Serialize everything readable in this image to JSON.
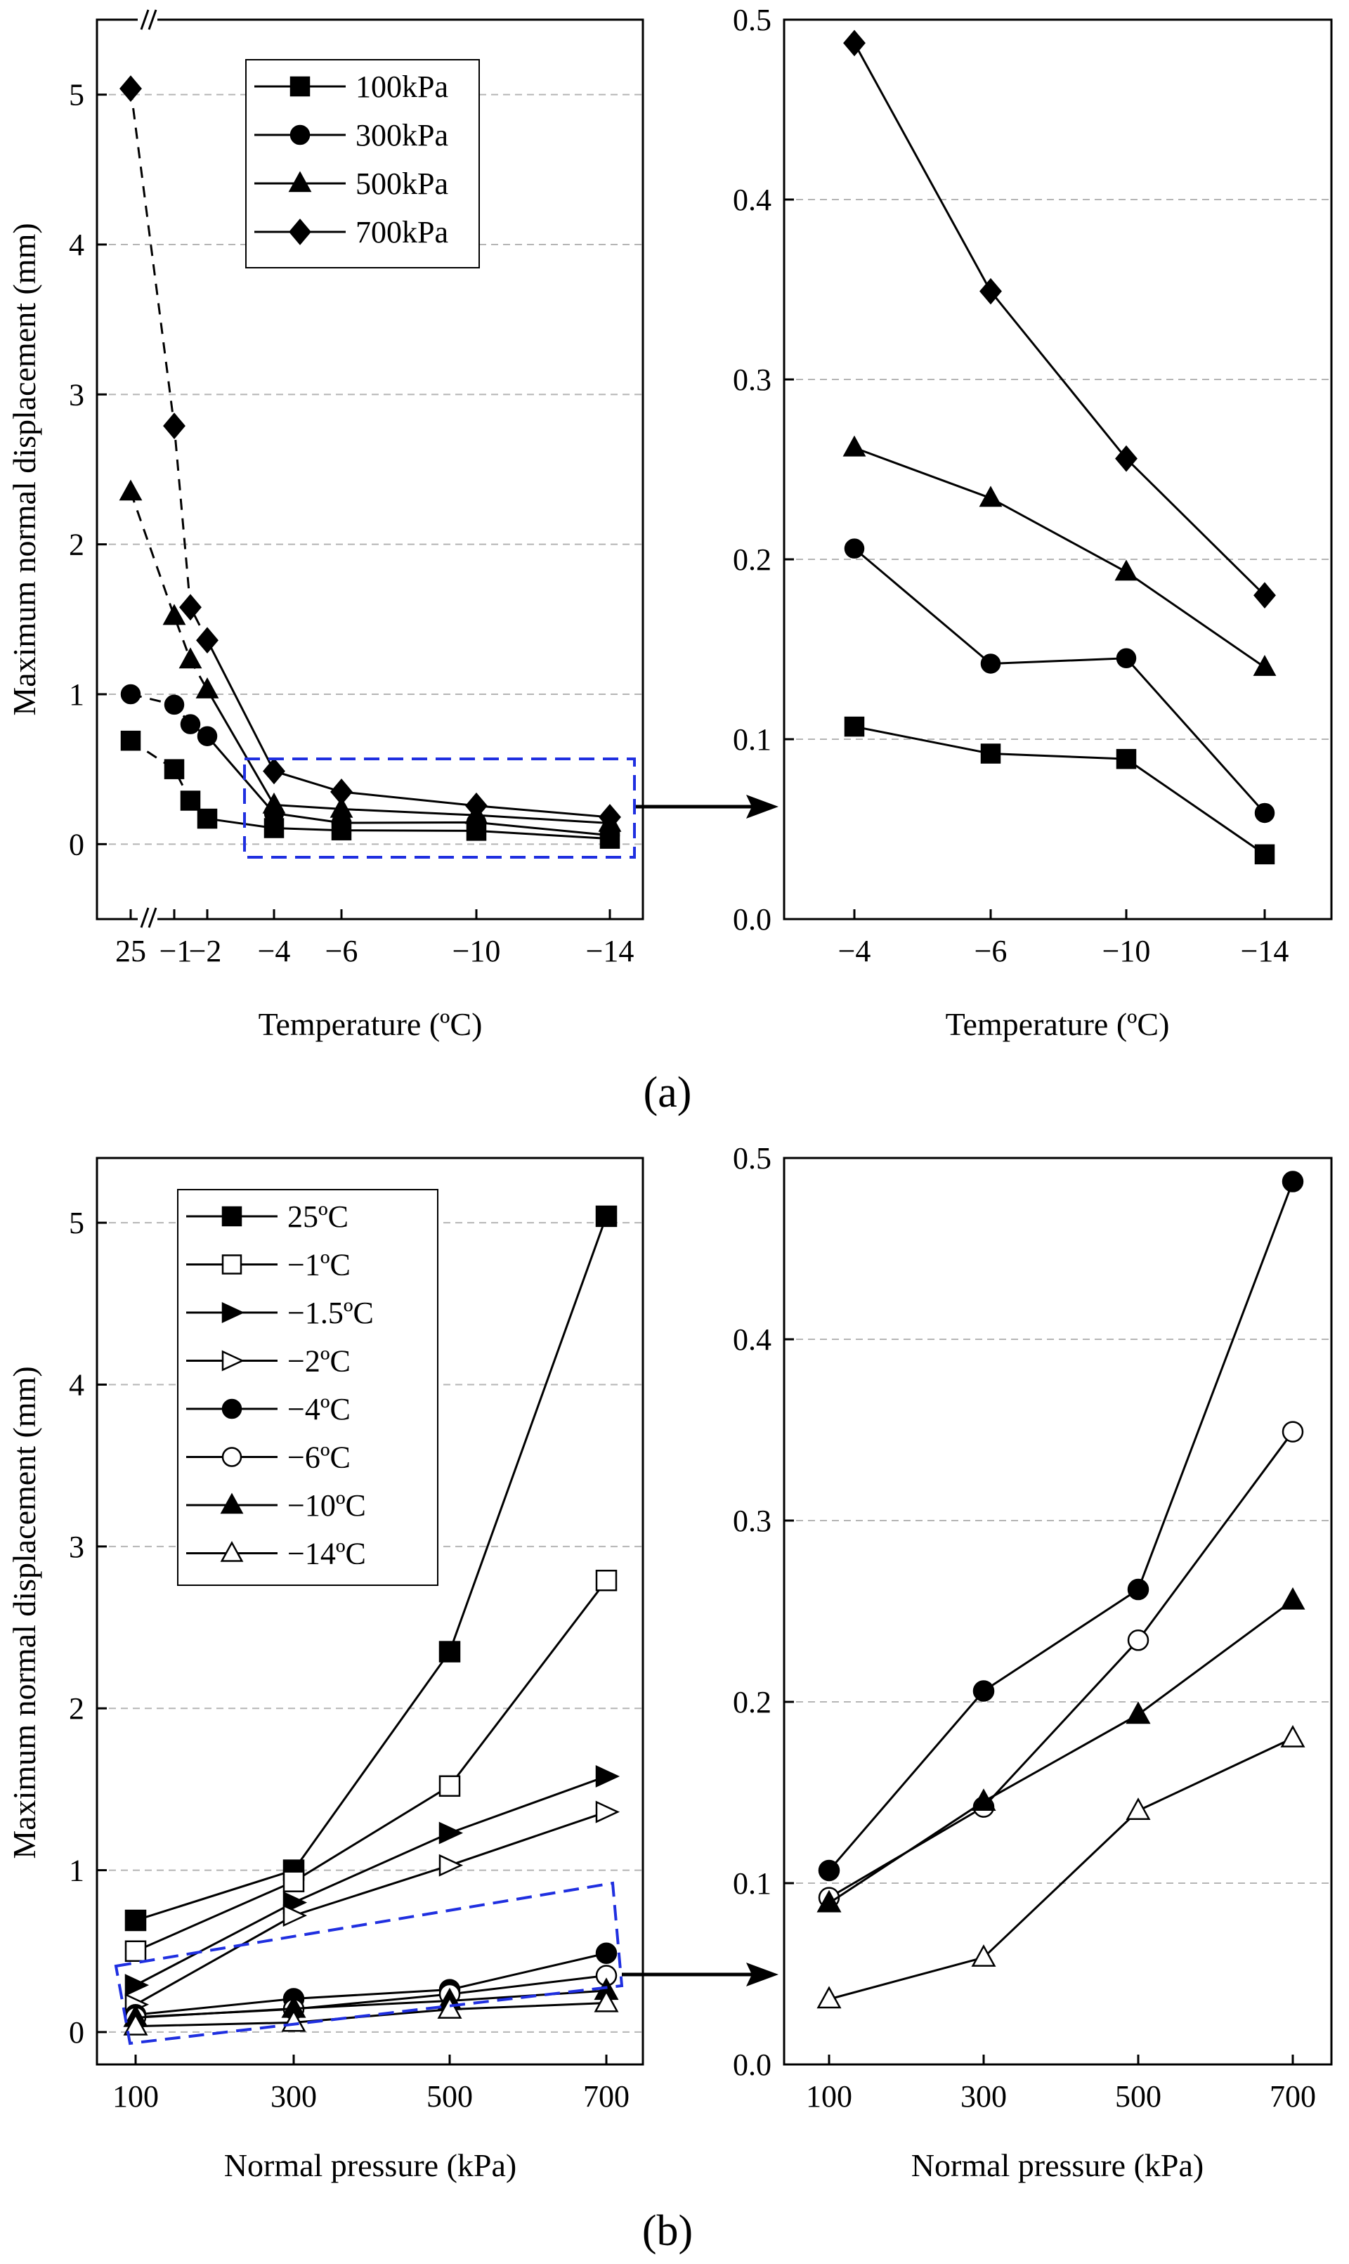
{
  "panel_labels": {
    "a": "(a)",
    "b": "(b)"
  },
  "chart_data": [
    {
      "id": "a-left",
      "type": "line",
      "ylabel": "Maximum normal displacement (mm)",
      "xlabel": "Temperature (ºC)",
      "x": [
        25,
        -1,
        -1.5,
        -2,
        -4,
        -6,
        -10,
        -14
      ],
      "xtick_labels": [
        "25",
        "−1",
        "−2",
        "−4",
        "−6",
        "−10",
        "−14"
      ],
      "ylim": [
        -0.5,
        5.5
      ],
      "yticks": [
        "0",
        "1",
        "2",
        "3",
        "4",
        "5"
      ],
      "grid": true,
      "broken_x_axis": true,
      "legend_position": "top-center",
      "series": [
        {
          "name": "100kPa",
          "marker": "square-filled",
          "values": [
            0.69,
            0.5,
            0.29,
            0.17,
            0.107,
            0.092,
            0.089,
            0.036
          ]
        },
        {
          "name": "300kPa",
          "marker": "circle-filled",
          "values": [
            1.0,
            0.93,
            0.8,
            0.72,
            0.206,
            0.142,
            0.145,
            0.059
          ]
        },
        {
          "name": "500kPa",
          "marker": "triangle-filled",
          "values": [
            2.35,
            1.52,
            1.23,
            1.03,
            0.262,
            0.234,
            0.193,
            0.14
          ]
        },
        {
          "name": "700kPa",
          "marker": "diamond-filled",
          "values": [
            5.04,
            2.79,
            1.58,
            1.36,
            0.487,
            0.349,
            0.256,
            0.18
          ]
        }
      ]
    },
    {
      "id": "a-right",
      "type": "line",
      "ylabel": "",
      "xlabel": "Temperature (ºC)",
      "x": [
        -4,
        -6,
        -10,
        -14
      ],
      "xtick_labels": [
        "−4",
        "−6",
        "−10",
        "−14"
      ],
      "ylim": [
        0,
        0.5
      ],
      "yticks": [
        "0.0",
        "0.1",
        "0.2",
        "0.3",
        "0.4",
        "0.5"
      ],
      "grid": true,
      "series": [
        {
          "name": "100kPa",
          "marker": "square-filled",
          "values": [
            0.107,
            0.092,
            0.089,
            0.036
          ]
        },
        {
          "name": "300kPa",
          "marker": "circle-filled",
          "values": [
            0.206,
            0.142,
            0.145,
            0.059
          ]
        },
        {
          "name": "500kPa",
          "marker": "triangle-filled",
          "values": [
            0.262,
            0.234,
            0.193,
            0.14
          ]
        },
        {
          "name": "700kPa",
          "marker": "diamond-filled",
          "values": [
            0.487,
            0.349,
            0.256,
            0.18
          ]
        }
      ]
    },
    {
      "id": "b-left",
      "type": "line",
      "ylabel": "Maximum normal displacement (mm)",
      "xlabel": "Normal pressure (kPa)",
      "x": [
        100,
        300,
        500,
        700
      ],
      "xtick_labels": [
        "100",
        "300",
        "500",
        "700"
      ],
      "ylim": [
        -0.2,
        5.4
      ],
      "yticks": [
        "0",
        "1",
        "2",
        "3",
        "4",
        "5"
      ],
      "grid": true,
      "legend_position": "top-left",
      "series": [
        {
          "name": "25ºC",
          "marker": "square-filled",
          "values": [
            0.69,
            1.0,
            2.35,
            5.04
          ]
        },
        {
          "name": "−1ºC",
          "marker": "square-open",
          "values": [
            0.5,
            0.93,
            1.52,
            2.79
          ]
        },
        {
          "name": "−1.5ºC",
          "marker": "triangle-right-filled",
          "values": [
            0.29,
            0.8,
            1.23,
            1.58
          ]
        },
        {
          "name": "−2ºC",
          "marker": "triangle-right-open",
          "values": [
            0.17,
            0.72,
            1.03,
            1.36
          ]
        },
        {
          "name": "−4ºC",
          "marker": "circle-filled",
          "values": [
            0.107,
            0.206,
            0.262,
            0.487
          ]
        },
        {
          "name": "−6ºC",
          "marker": "circle-open",
          "values": [
            0.092,
            0.142,
            0.234,
            0.349
          ]
        },
        {
          "name": "−10ºC",
          "marker": "triangle-filled",
          "values": [
            0.089,
            0.145,
            0.193,
            0.256
          ]
        },
        {
          "name": "−14ºC",
          "marker": "triangle-open",
          "values": [
            0.036,
            0.059,
            0.14,
            0.18
          ]
        }
      ]
    },
    {
      "id": "b-right",
      "type": "line",
      "ylabel": "",
      "xlabel": "Normal pressure (kPa)",
      "x": [
        100,
        300,
        500,
        700
      ],
      "xtick_labels": [
        "100",
        "300",
        "500",
        "700"
      ],
      "ylim": [
        0,
        0.5
      ],
      "yticks": [
        "0.0",
        "0.1",
        "0.2",
        "0.3",
        "0.4",
        "0.5"
      ],
      "grid": true,
      "series": [
        {
          "name": "−4ºC",
          "marker": "circle-filled",
          "values": [
            0.107,
            0.206,
            0.262,
            0.487
          ]
        },
        {
          "name": "−6ºC",
          "marker": "circle-open",
          "values": [
            0.092,
            0.142,
            0.234,
            0.349
          ]
        },
        {
          "name": "−10ºC",
          "marker": "triangle-filled",
          "values": [
            0.089,
            0.145,
            0.193,
            0.256
          ]
        },
        {
          "name": "−14ºC",
          "marker": "triangle-open",
          "values": [
            0.036,
            0.059,
            0.14,
            0.18
          ]
        }
      ]
    }
  ]
}
